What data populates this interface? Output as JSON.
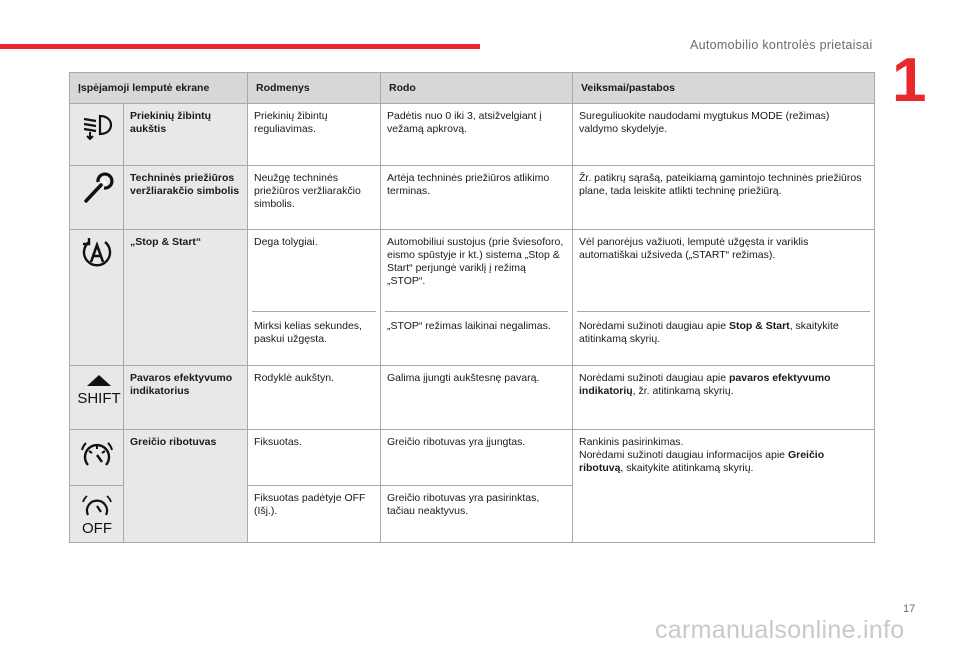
{
  "header": {
    "title": "Automobilio kontrolės prietaisai",
    "chapter": "1",
    "accent_color": "#e8282c"
  },
  "table": {
    "headers": [
      "Įspėjamoji lemputė ekrane",
      "Rodmenys",
      "Rodo",
      "Veiksmai/pastabos"
    ],
    "rows": [
      {
        "icon": "high-beam-adjust-icon",
        "name": "Priekinių žibintų aukštis",
        "state": "Priekinių žibintų reguliavimas.",
        "shows": "Padėtis nuo 0 iki 3, atsižvelgiant į vežamą apkrovą.",
        "action": "Sureguliuokite naudodami mygtukus MODE (režimas) valdymo skydelyje."
      },
      {
        "icon": "wrench-icon",
        "name": "Techninės priežiūros veržliarakčio simbolis",
        "state": "Neužgę techninės priežiūros veržliarakčio simbolis.",
        "shows": "Artėja techninės priežiūros atlikimo terminas.",
        "action": "Žr. patikrų sąrašą, pateikiamą gamintojo techninės priežiūros plane, tada leiskite atlikti techninę priežiūrą."
      },
      {
        "icon": "stop-start-icon",
        "name_prefix": "„",
        "name_bold": "Stop & Start",
        "name_suffix": "“",
        "state": "Dega tolygiai.",
        "shows": "Automobiliui sustojus (prie šviesoforo, eismo spūstyje ir kt.) sistema „Stop & Start“ perjungė variklį į režimą „STOP“.",
        "action": "Vėl panorėjus važiuoti, lemputė užgęsta ir variklis automatiškai užsiveda („START“ režimas).",
        "state2": "Mirksi kelias sekundes, paskui užgęsta.",
        "shows2": "„STOP“ režimas laikinai negalimas.",
        "action2_prefix": "Norėdami sužinoti daugiau apie ",
        "action2_bold": "Stop & Start",
        "action2_suffix": ", skaitykite atitinkamą skyrių."
      },
      {
        "icon": "shift-up-icon",
        "icon_text": "SHIFT",
        "name": "Pavaros efektyvumo indikatorius",
        "state": "Rodyklė aukštyn.",
        "shows": "Galima įjungti aukštesnę pavarą.",
        "action_prefix": "Norėdami sužinoti daugiau apie ",
        "action_bold": "pavaros efektyvumo indikatorių",
        "action_suffix": ", žr. atitinkamą skyrių."
      },
      {
        "icon": "speed-limiter-icon",
        "icon2": "speed-limiter-off-icon",
        "icon2_text": "OFF",
        "name": "Greičio ribotuvas",
        "state": "Fiksuotas.",
        "shows": "Greičio ribotuvas yra įjungtas.",
        "action_line1": "Rankinis pasirinkimas.",
        "action_prefix": "Norėdami sužinoti daugiau informacijos apie ",
        "action_bold": "Greičio ribotuvą",
        "action_suffix": ", skaitykite atitinkamą skyrių.",
        "state2": "Fiksuotas padėtyje OFF (Išj.).",
        "shows2": "Greičio ribotuvas yra pasirinktas, tačiau neaktyvus."
      }
    ]
  },
  "footer": {
    "page_number": "17",
    "watermark": "carmanualsonline.info"
  }
}
